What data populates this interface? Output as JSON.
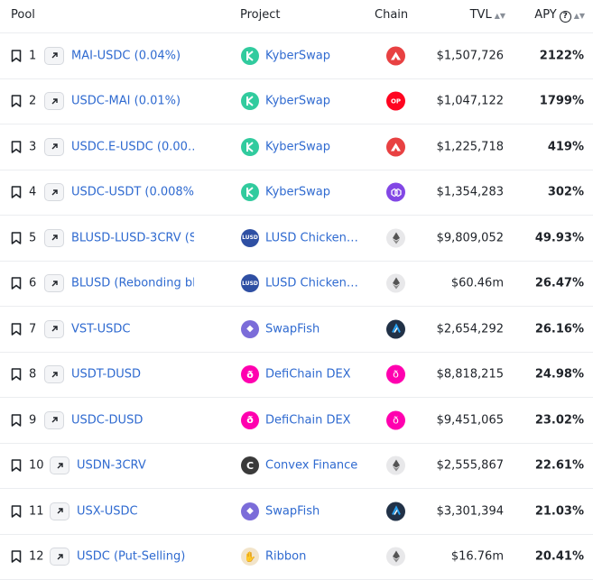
{
  "header": {
    "pool": "Pool",
    "project": "Project",
    "chain": "Chain",
    "tvl": "TVL",
    "apy": "APY",
    "sort_icon": "sort-icon",
    "help_icon": "help-icon"
  },
  "rows": [
    {
      "idx": "1",
      "pool": "MAI-USDC (0.04%)",
      "project": "KyberSwap",
      "project_icon": "kyberswap-icon",
      "chain_icon": "avalanche-icon",
      "tvl": "$1,507,726",
      "apy": "2122%"
    },
    {
      "idx": "2",
      "pool": "USDC-MAI (0.01%)",
      "project": "KyberSwap",
      "project_icon": "kyberswap-icon",
      "chain_icon": "optimism-icon",
      "tvl": "$1,047,122",
      "apy": "1799%"
    },
    {
      "idx": "3",
      "pool": "USDC.E-USDC (0.00…",
      "project": "KyberSwap",
      "project_icon": "kyberswap-icon",
      "chain_icon": "avalanche-icon",
      "tvl": "$1,225,718",
      "apy": "419%"
    },
    {
      "idx": "4",
      "pool": "USDC-USDT (0.008%)",
      "project": "KyberSwap",
      "project_icon": "kyberswap-icon",
      "chain_icon": "polygon-icon",
      "tvl": "$1,354,283",
      "apy": "302%"
    },
    {
      "idx": "5",
      "pool": "BLUSD-LUSD-3CRV (S",
      "project": "LUSD Chicken…",
      "project_icon": "lusd-icon",
      "chain_icon": "ethereum-icon",
      "tvl": "$9,809,052",
      "apy": "49.93%"
    },
    {
      "idx": "6",
      "pool": "BLUSD (Rebonding bL",
      "project": "LUSD Chicken…",
      "project_icon": "lusd-icon",
      "chain_icon": "ethereum-icon",
      "tvl": "$60.46m",
      "apy": "26.47%"
    },
    {
      "idx": "7",
      "pool": "VST-USDC",
      "project": "SwapFish",
      "project_icon": "swapfish-icon",
      "chain_icon": "arbitrum-icon",
      "tvl": "$2,654,292",
      "apy": "26.16%"
    },
    {
      "idx": "8",
      "pool": "USDT-DUSD",
      "project": "DefiChain DEX",
      "project_icon": "defichain-icon",
      "chain_icon": "defichain-icon",
      "tvl": "$8,818,215",
      "apy": "24.98%"
    },
    {
      "idx": "9",
      "pool": "USDC-DUSD",
      "project": "DefiChain DEX",
      "project_icon": "defichain-icon",
      "chain_icon": "defichain-icon",
      "tvl": "$9,451,065",
      "apy": "23.02%"
    },
    {
      "idx": "10",
      "pool": "USDN-3CRV",
      "project": "Convex Finance",
      "project_icon": "convex-icon",
      "chain_icon": "ethereum-icon",
      "tvl": "$2,555,867",
      "apy": "22.61%"
    },
    {
      "idx": "11",
      "pool": "USX-USDC",
      "project": "SwapFish",
      "project_icon": "swapfish-icon",
      "chain_icon": "arbitrum-icon",
      "tvl": "$3,301,394",
      "apy": "21.03%"
    },
    {
      "idx": "12",
      "pool": "USDC (Put-Selling)",
      "project": "Ribbon",
      "project_icon": "ribbon-icon",
      "chain_icon": "ethereum-icon",
      "tvl": "$16.76m",
      "apy": "20.41%"
    }
  ],
  "colors": {
    "link": "#2f6ad0",
    "kyberswap": "#31cb9e",
    "avalanche": "#e84142",
    "optimism": "#ff0420",
    "polygon": "#8247e5",
    "ethereum_bg": "#e8e8ea",
    "arbitrum": "#213147",
    "defichain": "#ff00af",
    "lusd": "#2e4fa3",
    "swapfish": "#7b6cd9",
    "convex": "#3a3a3a"
  }
}
